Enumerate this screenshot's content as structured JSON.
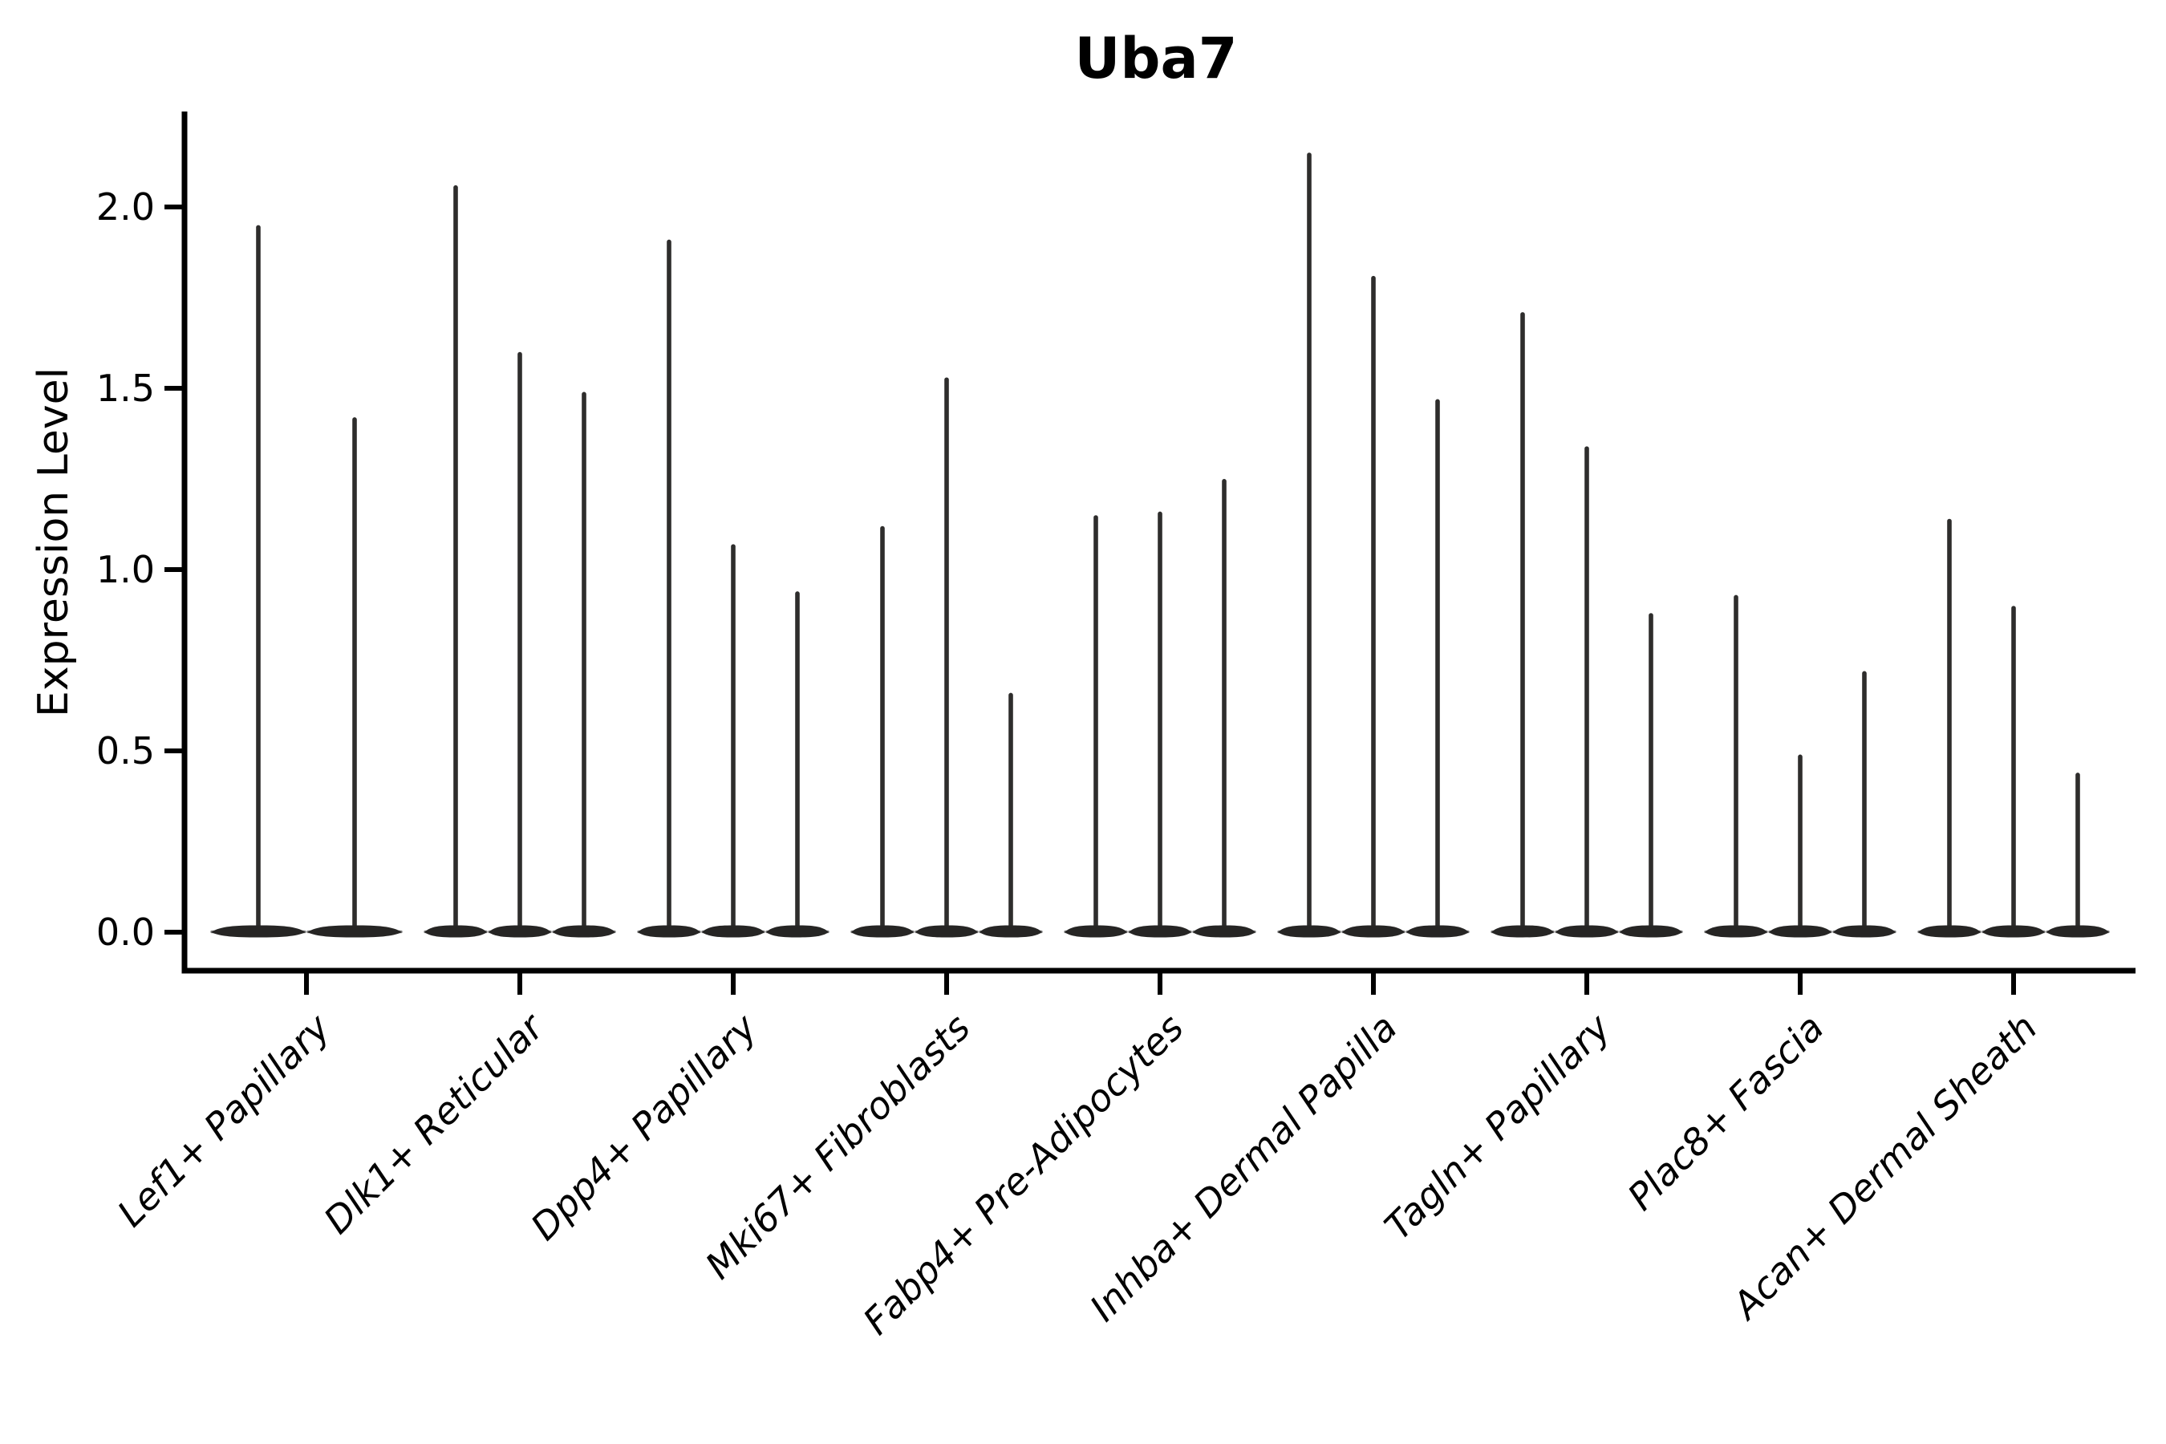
{
  "chart_data": {
    "type": "violin",
    "title": "Uba7",
    "xlabel": "",
    "ylabel": "Expression Level",
    "ylim": [
      -0.11,
      2.26
    ],
    "yticks": [
      0.0,
      0.5,
      1.0,
      1.5,
      2.0
    ],
    "ytick_labels": [
      "0.0",
      "0.5",
      "1.0",
      "1.5",
      "2.0"
    ],
    "grid": false,
    "legend_position": "none",
    "orientation": "vertical",
    "violin_shape": "zero-inflated: wide flat body at 0 expression with a thin spike rising to the maximum",
    "categories": [
      "Lef1+ Papillary",
      "Dlk1+ Reticular",
      "Dpp4+ Papillary",
      "Mki67+ Fibroblasts",
      "Fabp4+ Pre-Adipocytes",
      "Inhba+ Dermal Papilla",
      "Tagln+ Papillary",
      "Plac8+ Fascia",
      "Acan+ Dermal Sheath"
    ],
    "series": [
      {
        "category": "Lef1+ Papillary",
        "violin_maxima": [
          1.95,
          1.42
        ]
      },
      {
        "category": "Dlk1+ Reticular",
        "violin_maxima": [
          2.06,
          1.6,
          1.49
        ]
      },
      {
        "category": "Dpp4+ Papillary",
        "violin_maxima": [
          1.91,
          1.07,
          0.94
        ]
      },
      {
        "category": "Mki67+ Fibroblasts",
        "violin_maxima": [
          1.12,
          1.53,
          0.66
        ]
      },
      {
        "category": "Fabp4+ Pre-Adipocytes",
        "violin_maxima": [
          1.15,
          1.16,
          1.25
        ]
      },
      {
        "category": "Inhba+ Dermal Papilla",
        "violin_maxima": [
          2.15,
          1.81,
          1.47
        ]
      },
      {
        "category": "Tagln+ Papillary",
        "violin_maxima": [
          1.71,
          1.34,
          0.88
        ]
      },
      {
        "category": "Plac8+ Fascia",
        "violin_maxima": [
          0.93,
          0.49,
          0.72
        ]
      },
      {
        "category": "Acan+ Dermal Sheath",
        "violin_maxima": [
          1.14,
          0.9,
          0.44
        ]
      }
    ]
  },
  "colors": {
    "background": "#ffffff",
    "axis": "#000000",
    "text": "#000000",
    "violin_spike": "#2e2d2c",
    "violin_base": "#262524",
    "violin_tail": "#8c8c8c"
  }
}
